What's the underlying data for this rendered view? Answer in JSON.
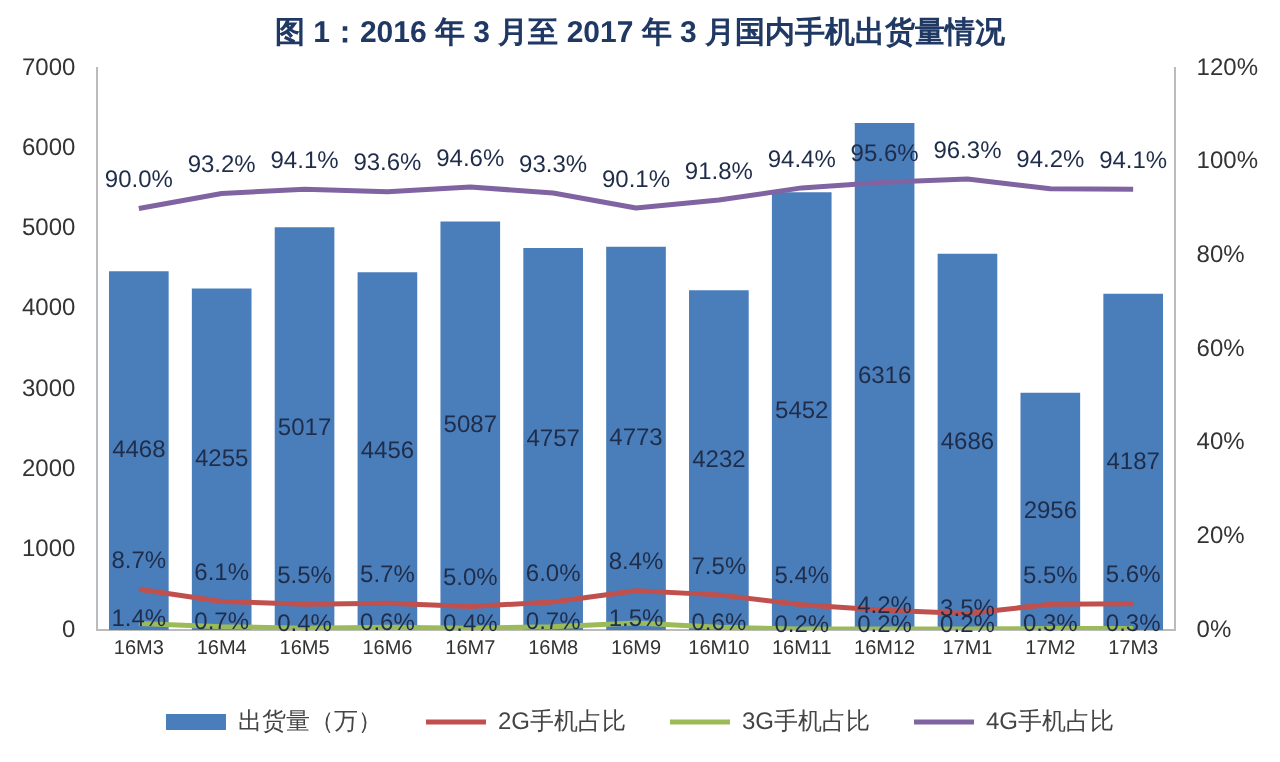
{
  "chart_data": {
    "type": "bar",
    "title": "图 1：2016 年 3 月至 2017 年 3 月国内手机出货量情况",
    "categories": [
      "16M3",
      "16M4",
      "16M5",
      "16M6",
      "16M7",
      "16M8",
      "16M9",
      "16M10",
      "16M11",
      "16M12",
      "17M1",
      "17M2",
      "17M3"
    ],
    "series": [
      {
        "name": "出货量（万）",
        "color": "#4a7ebb",
        "values": [
          4468,
          4255,
          5017,
          4456,
          5087,
          4757,
          4773,
          4232,
          5452,
          6316,
          4686,
          2956,
          4187
        ],
        "value_labels": [
          "4468",
          "4255",
          "5017",
          "4456",
          "5087",
          "4757",
          "4773",
          "4232",
          "5452",
          "6316",
          "4686",
          "2956",
          "4187"
        ]
      },
      {
        "name": "2G手机占比",
        "type": "line",
        "axis": "y2",
        "color": "#c0504d",
        "values": [
          8.7,
          6.1,
          5.5,
          5.7,
          5.0,
          6.0,
          8.4,
          7.5,
          5.4,
          4.2,
          3.5,
          5.5,
          5.6
        ],
        "value_labels": [
          "8.7%",
          "6.1%",
          "5.5%",
          "5.7%",
          "5.0%",
          "6.0%",
          "8.4%",
          "7.5%",
          "5.4%",
          "4.2%",
          "3.5%",
          "5.5%",
          "5.6%"
        ]
      },
      {
        "name": "3G手机占比",
        "type": "line",
        "axis": "y2",
        "color": "#9bbb59",
        "values": [
          1.4,
          0.7,
          0.4,
          0.6,
          0.4,
          0.7,
          1.5,
          0.6,
          0.2,
          0.2,
          0.2,
          0.3,
          0.3
        ],
        "value_labels": [
          "1.4%",
          "0.7%",
          "0.4%",
          "0.6%",
          "0.4%",
          "0.7%",
          "1.5%",
          "0.6%",
          "0.2%",
          "0.2%",
          "0.2%",
          "0.3%",
          "0.3%"
        ]
      },
      {
        "name": "4G手机占比",
        "type": "line",
        "axis": "y2",
        "color": "#8064a2",
        "values": [
          90.0,
          93.2,
          94.1,
          93.6,
          94.6,
          93.3,
          90.1,
          91.8,
          94.4,
          95.6,
          96.3,
          94.2,
          94.1
        ],
        "value_labels": [
          "90.0%",
          "93.2%",
          "94.1%",
          "93.6%",
          "94.6%",
          "93.3%",
          "90.1%",
          "91.8%",
          "94.4%",
          "95.6%",
          "96.3%",
          "94.2%",
          "94.1%"
        ]
      }
    ],
    "ylim": [
      0,
      7000
    ],
    "yticks": [
      0,
      1000,
      2000,
      3000,
      4000,
      5000,
      6000,
      7000
    ],
    "y2lim": [
      0,
      120
    ],
    "y2ticks": [
      {
        "value": 0,
        "label": "0%"
      },
      {
        "value": 20,
        "label": "20%"
      },
      {
        "value": 40,
        "label": "40%"
      },
      {
        "value": 60,
        "label": "60%"
      },
      {
        "value": 80,
        "label": "80%"
      },
      {
        "value": 100,
        "label": "100%"
      },
      {
        "value": 120,
        "label": "120%"
      }
    ],
    "grid": false,
    "legend": "bottom",
    "marker": "none",
    "line_style": "solid"
  }
}
